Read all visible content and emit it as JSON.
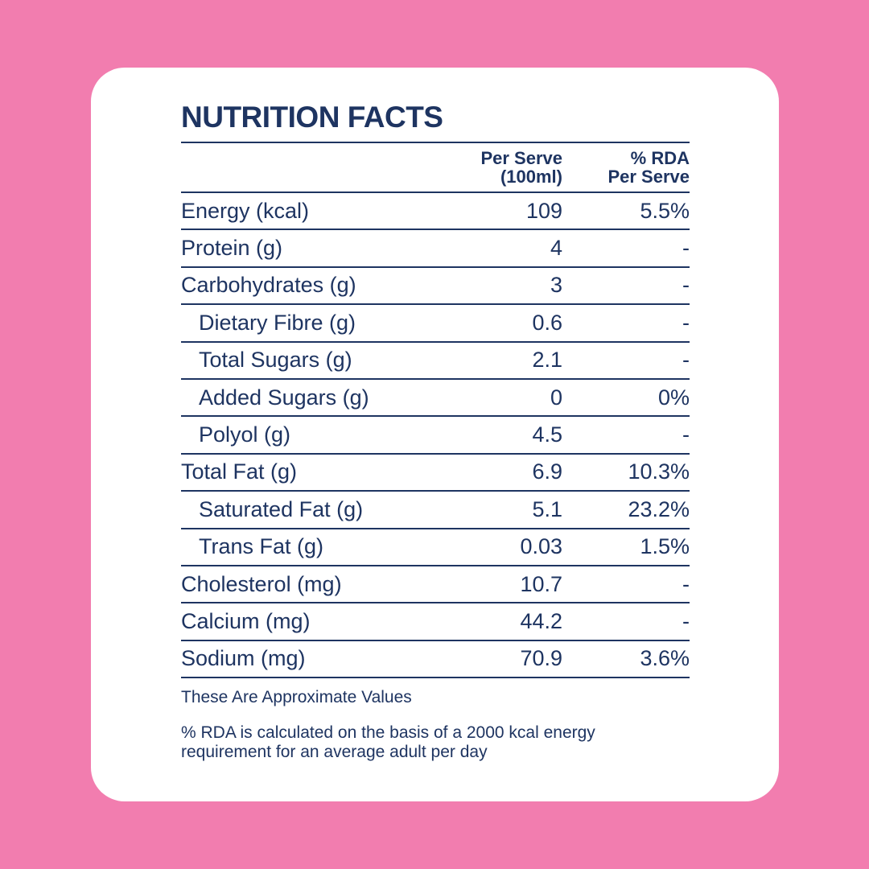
{
  "title": "NUTRITION FACTS",
  "columns": {
    "per_serve_line1": "Per Serve",
    "per_serve_line2": "(100ml)",
    "rda_line1": "% RDA",
    "rda_line2": "Per Serve"
  },
  "rows": [
    {
      "label": "Energy (kcal)",
      "value": "109",
      "rda": "5.5%"
    },
    {
      "label": "Protein (g)",
      "value": "4",
      "rda": "-"
    },
    {
      "label": "Carbohydrates (g)",
      "value": "3",
      "rda": "-"
    },
    {
      "label": "Dietary Fibre (g)",
      "value": "0.6",
      "rda": "-"
    },
    {
      "label": "Total Sugars (g)",
      "value": "2.1",
      "rda": "-"
    },
    {
      "label": "Added Sugars (g)",
      "value": "0",
      "rda": "0%"
    },
    {
      "label": "Polyol (g)",
      "value": "4.5",
      "rda": "-"
    },
    {
      "label": "Total Fat (g)",
      "value": "6.9",
      "rda": "10.3%"
    },
    {
      "label": "Saturated Fat (g)",
      "value": "5.1",
      "rda": "23.2%"
    },
    {
      "label": "Trans Fat (g)",
      "value": "0.03",
      "rda": "1.5%"
    },
    {
      "label": "Cholesterol (mg)",
      "value": "10.7",
      "rda": "-"
    },
    {
      "label": "Calcium (mg)",
      "value": "44.2",
      "rda": "-"
    },
    {
      "label": "Sodium (mg)",
      "value": "70.9",
      "rda": "3.6%"
    }
  ],
  "note": "These Are Approximate Values",
  "footnote": "% RDA is calculated on the basis of a 2000 kcal energy requirement for an average adult per day",
  "colors": {
    "background": "#f27daf",
    "card": "#ffffff",
    "text": "#1e3461"
  }
}
